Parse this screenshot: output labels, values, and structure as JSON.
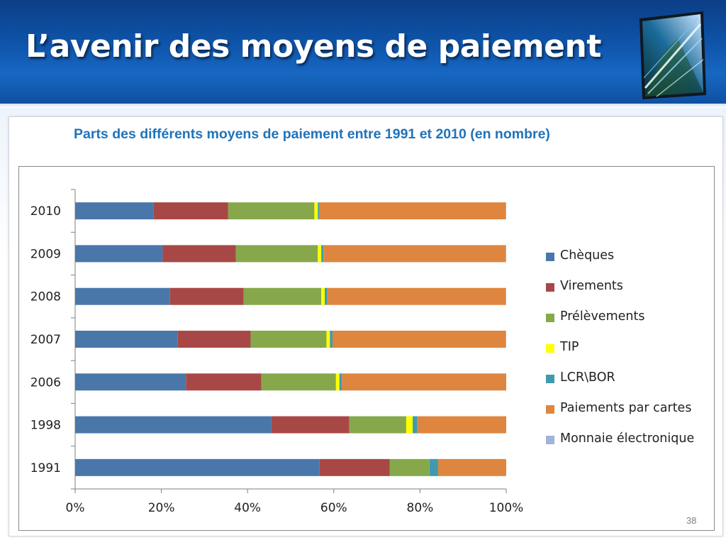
{
  "slide": {
    "title": "L’avenir des moyens de paiement",
    "page_number": "38"
  },
  "chart_data": {
    "type": "bar",
    "orientation": "horizontal",
    "stacked": "percent",
    "title": "Parts des différents moyens de paiement entre 1991 et 2010 (en nombre)",
    "xlabel": "",
    "ylabel": "",
    "xlim": [
      0,
      100
    ],
    "x_ticks": [
      "0%",
      "20%",
      "40%",
      "60%",
      "80%",
      "100%"
    ],
    "categories": [
      "2010",
      "2009",
      "2008",
      "2007",
      "2006",
      "1998",
      "1991"
    ],
    "legend_position": "right",
    "series": [
      {
        "name": "Chèques",
        "color": "#4a77aa",
        "values": [
          18.2,
          20.3,
          22.0,
          23.8,
          25.7,
          45.5,
          56.7
        ]
      },
      {
        "name": "Virements",
        "color": "#a84846",
        "values": [
          17.3,
          17.0,
          17.1,
          16.9,
          17.5,
          18.1,
          16.3
        ]
      },
      {
        "name": "Prélèvements",
        "color": "#86a84b",
        "values": [
          20.0,
          19.0,
          18.0,
          17.6,
          17.3,
          13.2,
          9.2
        ]
      },
      {
        "name": "TIP",
        "color": "#ffff00",
        "values": [
          0.8,
          0.8,
          0.8,
          0.8,
          0.8,
          1.5,
          0.0
        ]
      },
      {
        "name": "LCR\\BOR",
        "color": "#3f9ab0",
        "values": [
          0.4,
          0.5,
          0.6,
          0.6,
          0.6,
          1.1,
          2.0
        ]
      },
      {
        "name": "Paiements par cartes",
        "color": "#de8640",
        "values": [
          43.2,
          42.3,
          41.4,
          40.2,
          38.1,
          20.6,
          15.8
        ]
      },
      {
        "name": "Monnaie électronique",
        "color": "#9fb4d8",
        "values": [
          0.1,
          0.1,
          0.1,
          0.1,
          0.0,
          0.0,
          0.0
        ]
      }
    ]
  }
}
